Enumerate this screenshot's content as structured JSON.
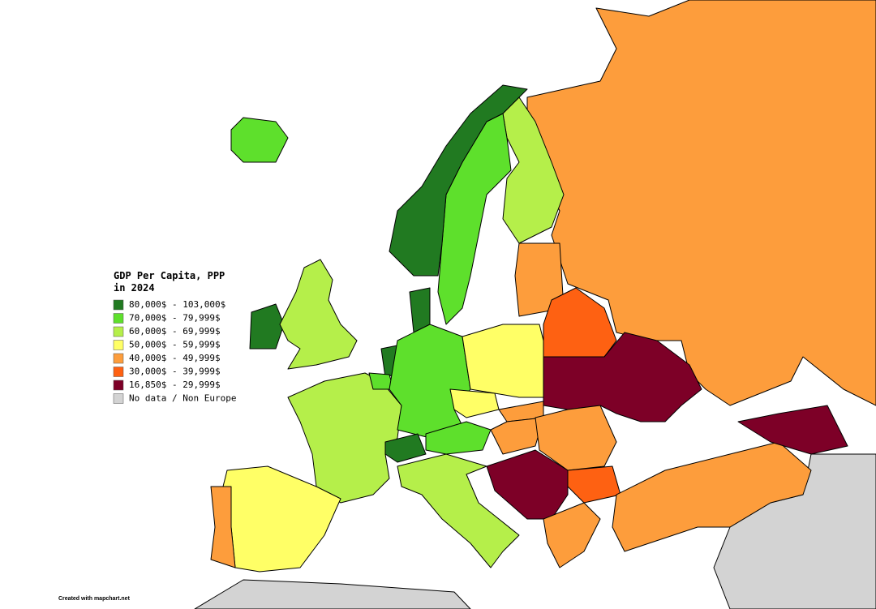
{
  "legend": {
    "title": "GDP Per Capita, PPP in 2024",
    "items": [
      {
        "label": "80,000$ - 103,000$",
        "color": "#217a21"
      },
      {
        "label": "70,000$ - 79,999$",
        "color": "#5ee02c"
      },
      {
        "label": "60,000$ - 69,999$",
        "color": "#b5ef4a"
      },
      {
        "label": "50,000$ - 59,999$",
        "color": "#ffff66"
      },
      {
        "label": "40,000$ - 49,999$",
        "color": "#fd9d3c"
      },
      {
        "label": "30,000$ - 39,999$",
        "color": "#fe6112"
      },
      {
        "label": "16,850$ - 29,999$",
        "color": "#7d0027"
      },
      {
        "label": "No data / Non Europe",
        "color": "#d3d3d3"
      }
    ]
  },
  "credit": "Created with mapchart.net"
}
